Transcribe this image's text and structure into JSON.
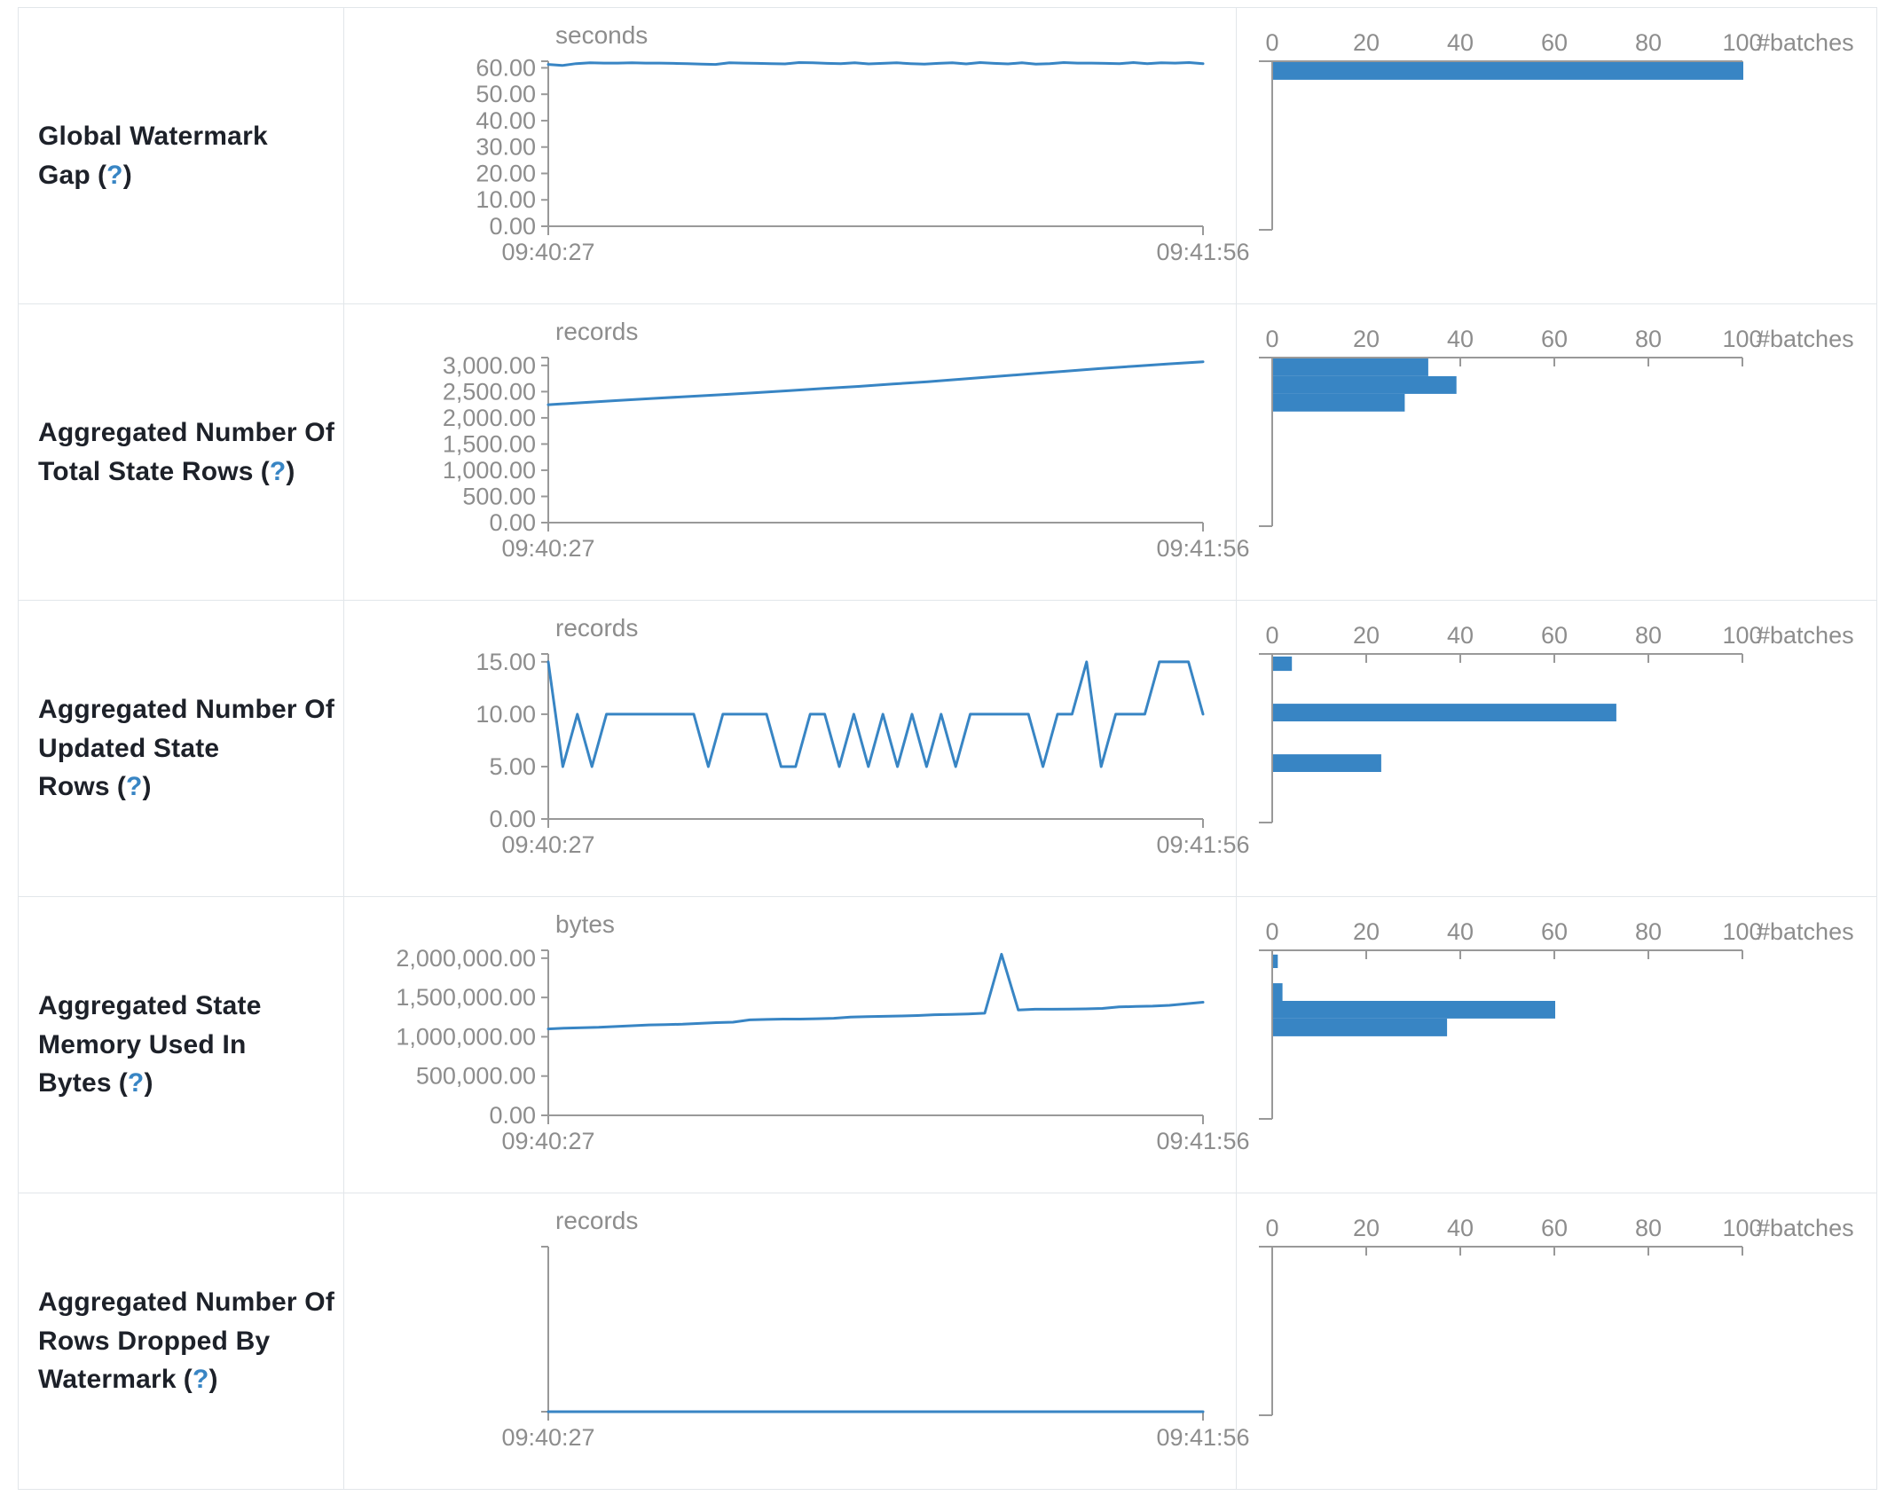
{
  "colors": {
    "series": "#3885c4",
    "axis": "#999999",
    "axis_text": "#8d8d8d",
    "help_link": "#3885c4",
    "border": "#e2e6ea",
    "label_text": "#1d2129"
  },
  "help_marker": {
    "open": "(",
    "q": "?",
    "close": ")"
  },
  "time_axis": {
    "start": "09:40:27",
    "end": "09:41:56"
  },
  "chart_data": [
    {
      "type": "line",
      "title": "Global Watermark Gap",
      "ylabel": "seconds",
      "x_range": [
        "09:40:27",
        "09:41:56"
      ],
      "ylim": [
        0,
        62.5
      ],
      "y_ticks": [
        0,
        10,
        20,
        30,
        40,
        50,
        60
      ],
      "y_tick_labels": [
        "0.00",
        "10.00",
        "20.00",
        "30.00",
        "40.00",
        "50.00",
        "60.00"
      ],
      "values": [
        61.3,
        60.9,
        61.6,
        61.9,
        61.8,
        61.8,
        61.9,
        61.8,
        61.8,
        61.7,
        61.6,
        61.4,
        61.3,
        61.9,
        61.8,
        61.7,
        61.6,
        61.5,
        62.0,
        61.9,
        61.7,
        61.6,
        61.9,
        61.5,
        61.7,
        61.9,
        61.6,
        61.4,
        61.7,
        61.9,
        61.5,
        62.0,
        61.7,
        61.5,
        61.9,
        61.4,
        61.6,
        62.0,
        61.8,
        61.8,
        61.7,
        61.6,
        62.0,
        61.6,
        61.9,
        61.8,
        62.0,
        61.6
      ],
      "histogram": {
        "type": "bar",
        "xlabel": "#batches",
        "xlim": [
          0,
          100
        ],
        "x_ticks": [
          0,
          20,
          40,
          60,
          80,
          100
        ],
        "bars": [
          {
            "count": 100,
            "level": "60",
            "top_frac": 0.0,
            "h_frac": 0.105
          }
        ]
      }
    },
    {
      "type": "line",
      "title": "Aggregated Number Of Total State Rows",
      "ylabel": "records",
      "x_range": [
        "09:40:27",
        "09:41:56"
      ],
      "ylim": [
        0,
        3150
      ],
      "y_ticks": [
        0,
        500,
        1000,
        1500,
        2000,
        2500,
        3000
      ],
      "y_tick_labels": [
        "0.00",
        "500.00",
        "1,000.00",
        "1,500.00",
        "2,000.00",
        "2,500.00",
        "3,000.00"
      ],
      "values": [
        2250,
        2290,
        2330,
        2370,
        2405,
        2440,
        2480,
        2520,
        2560,
        2600,
        2645,
        2690,
        2740,
        2790,
        2840,
        2890,
        2940,
        2985,
        3030,
        3070
      ],
      "histogram": {
        "type": "bar",
        "xlabel": "#batches",
        "xlim": [
          0,
          100
        ],
        "x_ticks": [
          0,
          20,
          40,
          60,
          80,
          100
        ],
        "bars": [
          {
            "count": 33,
            "level": "3,000",
            "top_frac": 0.0,
            "h_frac": 0.105
          },
          {
            "count": 39,
            "level": "2,650",
            "top_frac": 0.105,
            "h_frac": 0.105
          },
          {
            "count": 28,
            "level": "2,300",
            "top_frac": 0.21,
            "h_frac": 0.105
          }
        ]
      }
    },
    {
      "type": "line",
      "title": "Aggregated Number Of Updated State Rows",
      "ylabel": "records",
      "x_range": [
        "09:40:27",
        "09:41:56"
      ],
      "ylim": [
        0,
        15.75
      ],
      "y_ticks": [
        0,
        5,
        10,
        15
      ],
      "y_tick_labels": [
        "0.00",
        "5.00",
        "10.00",
        "15.00"
      ],
      "values": [
        15,
        5,
        10,
        5,
        10,
        10,
        10,
        10,
        10,
        10,
        10,
        5,
        10,
        10,
        10,
        10,
        5,
        5,
        10,
        10,
        5,
        10,
        5,
        10,
        5,
        10,
        5,
        10,
        5,
        10,
        10,
        10,
        10,
        10,
        5,
        10,
        10,
        15,
        5,
        10,
        10,
        10,
        15,
        15,
        15,
        10
      ],
      "histogram": {
        "type": "bar",
        "xlabel": "#batches",
        "xlim": [
          0,
          100
        ],
        "x_ticks": [
          0,
          20,
          40,
          60,
          80,
          100
        ],
        "bars": [
          {
            "count": 4,
            "level": "15",
            "top_frac": 0.01,
            "h_frac": 0.085
          },
          {
            "count": 73,
            "level": "10",
            "top_frac": 0.29,
            "h_frac": 0.105
          },
          {
            "count": 23,
            "level": "5",
            "top_frac": 0.59,
            "h_frac": 0.105
          }
        ]
      }
    },
    {
      "type": "line",
      "title": "Aggregated State Memory Used In Bytes",
      "ylabel": "bytes",
      "x_range": [
        "09:40:27",
        "09:41:56"
      ],
      "ylim": [
        0,
        2100000
      ],
      "y_ticks": [
        0,
        500000,
        1000000,
        1500000,
        2000000
      ],
      "y_tick_labels": [
        "0.00",
        "500,000.00",
        "1,000,000.00",
        "1,500,000.00",
        "2,000,000.00"
      ],
      "values": [
        1100000,
        1110000,
        1115000,
        1120000,
        1130000,
        1140000,
        1150000,
        1155000,
        1160000,
        1170000,
        1180000,
        1185000,
        1215000,
        1220000,
        1225000,
        1225000,
        1230000,
        1235000,
        1250000,
        1255000,
        1260000,
        1265000,
        1270000,
        1280000,
        1285000,
        1290000,
        1300000,
        2050000,
        1340000,
        1350000,
        1350000,
        1352000,
        1355000,
        1360000,
        1380000,
        1385000,
        1390000,
        1400000,
        1420000,
        1440000
      ],
      "histogram": {
        "type": "bar",
        "xlabel": "#batches",
        "xlim": [
          0,
          100
        ],
        "x_ticks": [
          0,
          20,
          40,
          60,
          80,
          100
        ],
        "bars": [
          {
            "count": 1,
            "level": "2,000,000",
            "top_frac": 0.02,
            "h_frac": 0.08
          },
          {
            "count": 2,
            "level": "1,600,000",
            "top_frac": 0.19,
            "h_frac": 0.105
          },
          {
            "count": 60,
            "level": "1,350,000",
            "top_frac": 0.295,
            "h_frac": 0.105
          },
          {
            "count": 37,
            "level": "1,150,000",
            "top_frac": 0.4,
            "h_frac": 0.105
          }
        ]
      }
    },
    {
      "type": "line",
      "title": "Aggregated Number Of Rows Dropped By Watermark",
      "ylabel": "records",
      "x_range": [
        "09:40:27",
        "09:41:56"
      ],
      "ylim": [
        0,
        1
      ],
      "y_ticks": [
        0
      ],
      "y_tick_labels": [
        ""
      ],
      "values": [
        0,
        0
      ],
      "histogram": {
        "type": "bar",
        "xlabel": "#batches",
        "xlim": [
          0,
          100
        ],
        "x_ticks": [
          0,
          20,
          40,
          60,
          80,
          100
        ],
        "bars": []
      }
    }
  ]
}
